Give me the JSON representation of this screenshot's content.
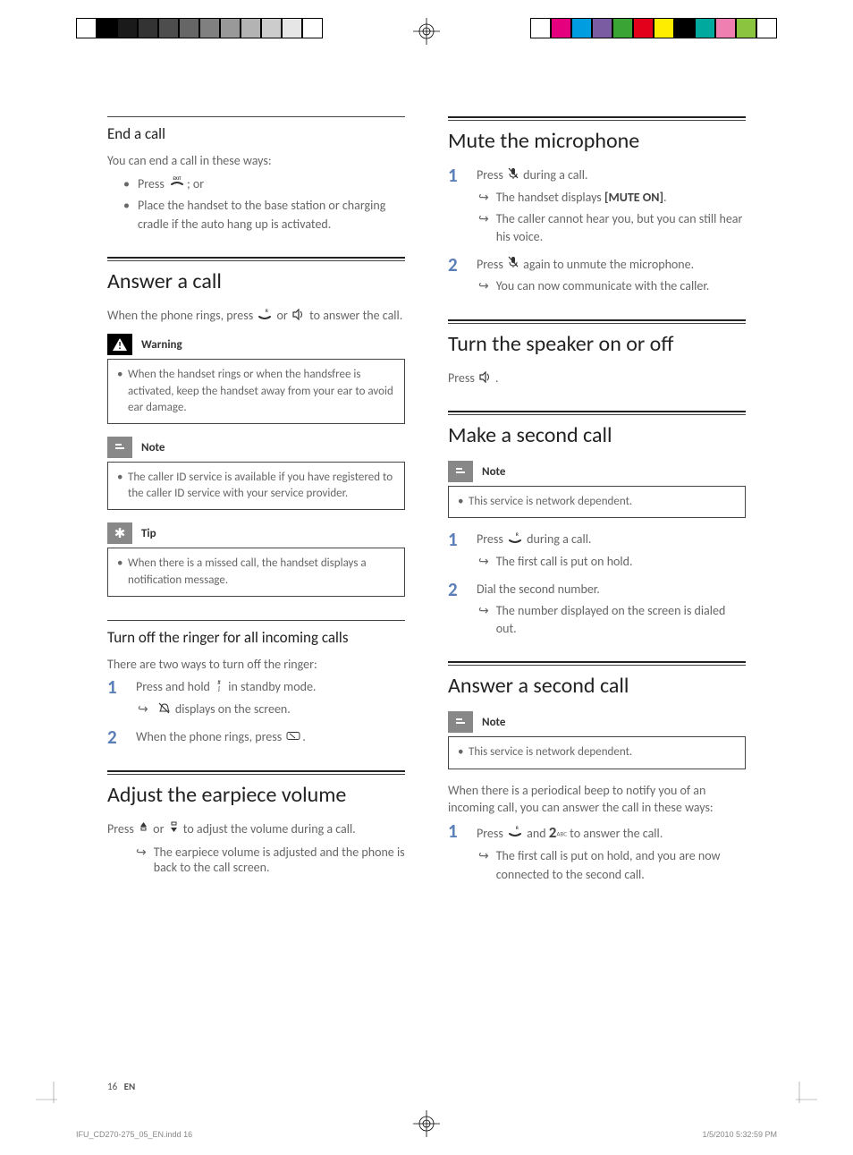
{
  "colorbars": {
    "left": [
      "#ffffff",
      "#000000",
      "#1a1a1a",
      "#333333",
      "#4d4d4d",
      "#666666",
      "#808080",
      "#999999",
      "#b3b3b3",
      "#cccccc",
      "#e6e6e6",
      "#ffffff"
    ],
    "right": [
      "#ffffff",
      "#e5007e",
      "#009ee0",
      "#7a5ca3",
      "#3aa535",
      "#e2001a",
      "#ffed00",
      "#000000",
      "#00a99d",
      "#ef7eb1",
      "#8bc53f",
      "#ffffff"
    ]
  },
  "left_col": {
    "end_call": {
      "title": "End a call",
      "intro": "You can end a call in these ways:",
      "items": [
        "Press {exit-icon}; or",
        "Place the handset to the base station or charging cradle if the auto hang up is activated."
      ]
    },
    "answer_call": {
      "title": "Answer a call",
      "intro_a": "When the phone rings, press ",
      "intro_b": " or ",
      "intro_c": " to answer the call.",
      "warning": {
        "label": "Warning",
        "body": "When the handset rings or when the handsfree is activated, keep the handset away from your ear to avoid ear damage."
      },
      "note": {
        "label": "Note",
        "body": "The caller ID service is available if you have registered to the caller ID service with your service provider."
      },
      "tip": {
        "label": "Tip",
        "body": "When there is a missed call, the handset displays a notification message."
      }
    },
    "ringer_off": {
      "title": "Turn off the ringer for all incoming calls",
      "intro": "There are two ways to turn off the ringer:",
      "steps": [
        {
          "text_a": "Press and hold ",
          "text_b": " in standby mode.",
          "result": " displays on the screen.",
          "result_has_icon": true
        },
        {
          "text_a": "When the phone rings, press ",
          "text_b": "."
        }
      ]
    },
    "adjust_vol": {
      "title": "Adjust the earpiece volume",
      "text_a": "Press ",
      "text_b": " or ",
      "text_c": " to adjust the volume during a call.",
      "result": "The earpiece volume is adjusted and the phone is back to the call screen."
    }
  },
  "right_col": {
    "mute": {
      "title": "Mute the microphone",
      "steps": [
        {
          "text_a": "Press ",
          "text_b": " during a call.",
          "results": [
            "The handset displays [MUTE ON].",
            "The caller cannot hear you, but you can still hear his voice."
          ]
        },
        {
          "text_a": "Press ",
          "text_b": " again to unmute the microphone.",
          "results": [
            "You can now communicate with the caller."
          ]
        }
      ]
    },
    "speaker": {
      "title": "Turn the speaker on or off",
      "text_a": "Press ",
      "text_b": "."
    },
    "second_call": {
      "title": "Make a second call",
      "note": {
        "label": "Note",
        "body": "This service is network dependent."
      },
      "steps": [
        {
          "text_a": "Press ",
          "text_b": " during a call.",
          "results": [
            "The first call is put on hold."
          ]
        },
        {
          "text_a": "Dial the second number.",
          "results": [
            "The number displayed on the screen is dialed out."
          ]
        }
      ]
    },
    "answer_second": {
      "title": "Answer a second call",
      "note": {
        "label": "Note",
        "body": "This service is network dependent."
      },
      "intro": "When there is a periodical beep to notify you of an incoming call, you can answer the call in these ways:",
      "steps": [
        {
          "text_a": "Press ",
          "text_b": " and ",
          "key2": "2",
          "key2sub": "ABC",
          "text_c": " to answer the call.",
          "results": [
            "The first call is put on hold, and you are now connected to the second call."
          ]
        }
      ]
    }
  },
  "footer": {
    "page": "16",
    "lang": "EN"
  },
  "slug": {
    "file": "IFU_CD270-275_05_EN.indd   16",
    "stamp": "1/5/2010   5:32:59 PM"
  },
  "style": {
    "heading_color": "#222222",
    "body_color": "#666666",
    "stepnum_color": "#5a7fb8",
    "rule_heavy": "#222222",
    "rule_light": "#444444"
  }
}
